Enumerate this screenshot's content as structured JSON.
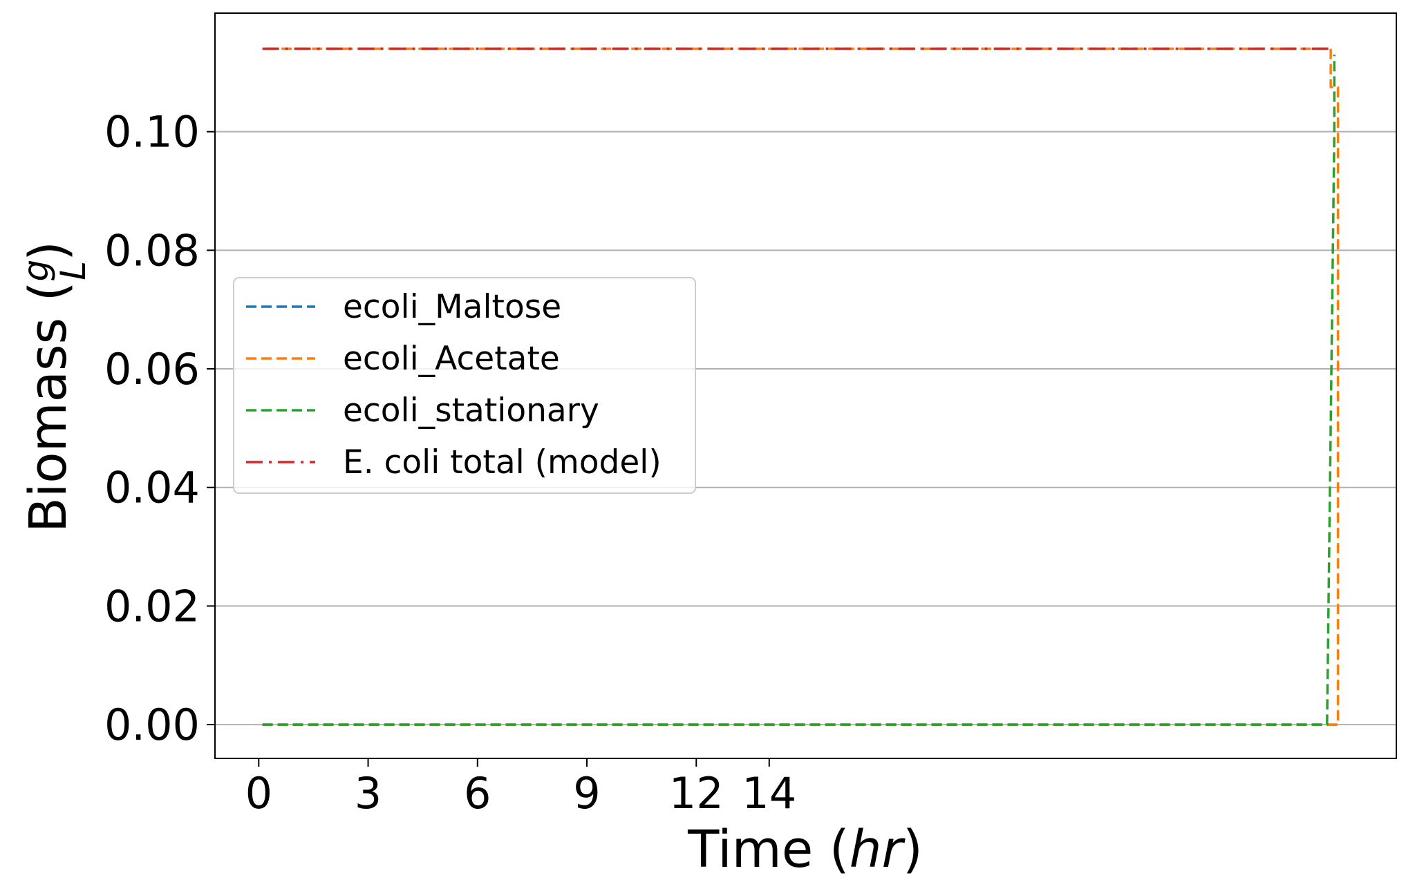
{
  "chart_data": {
    "type": "line",
    "xlabel": "Time",
    "xlabel_unit": "hr",
    "ylabel": "Biomass",
    "ylabel_unit_num": "g",
    "ylabel_unit_den": "L",
    "xlim": [
      -1.2,
      31.2
    ],
    "ylim": [
      -0.0057,
      0.12
    ],
    "xticks": [
      0,
      3,
      6,
      9,
      12,
      14
    ],
    "xtick_labels": [
      "0",
      "3",
      "6",
      "9",
      "12",
      "14"
    ],
    "yticks": [
      0.0,
      0.02,
      0.04,
      0.06,
      0.08,
      0.1
    ],
    "ytick_labels": [
      "0.00",
      "0.02",
      "0.04",
      "0.06",
      "0.08",
      "0.10"
    ],
    "grid": "y",
    "legend_position": "center-left",
    "series": [
      {
        "name": "ecoli_Maltose",
        "color": "#1f77b4",
        "style": "dashed",
        "points": [
          [
            0.1,
            0.0
          ],
          [
            29.6,
            0.0
          ]
        ]
      },
      {
        "name": "ecoli_Acetate",
        "color": "#ff7f0e",
        "style": "dashed",
        "points": [
          [
            0.1,
            0.0
          ],
          [
            29.6,
            0.0
          ],
          [
            29.6,
            0.0
          ],
          [
            29.6,
            0.1075
          ],
          [
            29.4,
            0.1075
          ],
          [
            29.4,
            0.114
          ],
          [
            0.1,
            0.114
          ]
        ]
      },
      {
        "name": "ecoli_stationary",
        "color": "#2ca02c",
        "style": "dashed",
        "points": [
          [
            0.1,
            0.0
          ],
          [
            29.3,
            0.0
          ],
          [
            29.3,
            0.0
          ],
          [
            29.5,
            0.1
          ],
          [
            29.5,
            0.113
          ]
        ]
      },
      {
        "name": "E. coli total (model)",
        "color": "#d62728",
        "style": "dashdot",
        "points": [
          [
            0.1,
            0.114
          ],
          [
            29.4,
            0.114
          ]
        ]
      }
    ]
  }
}
